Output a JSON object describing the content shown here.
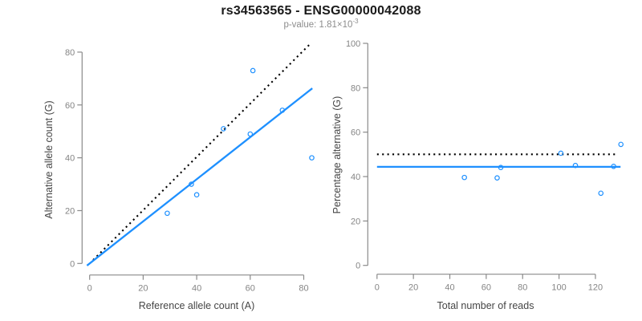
{
  "header": {
    "title": "rs34563565 - ENSG00000042088",
    "subtitle_prefix": "p-value: 1.81×10",
    "subtitle_exponent": "-3"
  },
  "colors": {
    "title": "#1a1a1a",
    "subtitle": "#8c8c8c",
    "axis": "#8a8a8a",
    "tick_label": "#858585",
    "axis_title": "#454545",
    "points": "#1E90FF",
    "fit_line": "#1E90FF",
    "reference_line": "#000000",
    "background": "#ffffff"
  },
  "chart_data": [
    {
      "type": "scatter",
      "name": "allele-counts",
      "title": "",
      "xlabel": "Reference allele count (A)",
      "ylabel": "Alternative allele count (G)",
      "xticks": [
        0,
        20,
        40,
        60,
        80
      ],
      "yticks": [
        0,
        20,
        40,
        60,
        80
      ],
      "xlim": [
        -3,
        86
      ],
      "ylim": [
        -3,
        83
      ],
      "grid": false,
      "legend": "none",
      "points": [
        [
          29,
          19
        ],
        [
          38,
          30
        ],
        [
          40,
          26
        ],
        [
          50,
          51
        ],
        [
          60,
          49
        ],
        [
          61,
          73
        ],
        [
          72,
          58
        ],
        [
          83,
          40
        ]
      ],
      "lines": [
        {
          "name": "identity-line",
          "style": "dotted",
          "color_key": "reference_line",
          "x1": 1.3,
          "y1": 1.3,
          "x2": 82.3,
          "y2": 83
        },
        {
          "name": "fit-line",
          "style": "solid",
          "color_key": "fit_line",
          "x1": -1,
          "y1": -0.8,
          "x2": 83.2,
          "y2": 66.3
        }
      ]
    },
    {
      "type": "scatter",
      "name": "percentage-vs-reads",
      "title": "",
      "xlabel": "Total number of reads",
      "ylabel": "Percentage alternative (G)",
      "xticks": [
        0,
        20,
        40,
        60,
        80,
        100,
        120
      ],
      "yticks": [
        0,
        20,
        40,
        60,
        80,
        100
      ],
      "xlim": [
        -5,
        140
      ],
      "ylim": [
        0,
        100
      ],
      "grid": false,
      "legend": "none",
      "points": [
        [
          48,
          39.6
        ],
        [
          66,
          39.4
        ],
        [
          68,
          44.1
        ],
        [
          101,
          50.5
        ],
        [
          109,
          45
        ],
        [
          123,
          32.5
        ],
        [
          130,
          44.6
        ],
        [
          134,
          54.5
        ]
      ],
      "lines": [
        {
          "name": "fifty-percent-line",
          "style": "dotted",
          "color_key": "reference_line",
          "x1": 0,
          "y1": 50,
          "x2": 132.6,
          "y2": 50
        },
        {
          "name": "mean-percentage-line",
          "style": "solid",
          "color_key": "fit_line",
          "x1": 0,
          "y1": 44.4,
          "x2": 133.8,
          "y2": 44.4
        }
      ]
    }
  ]
}
